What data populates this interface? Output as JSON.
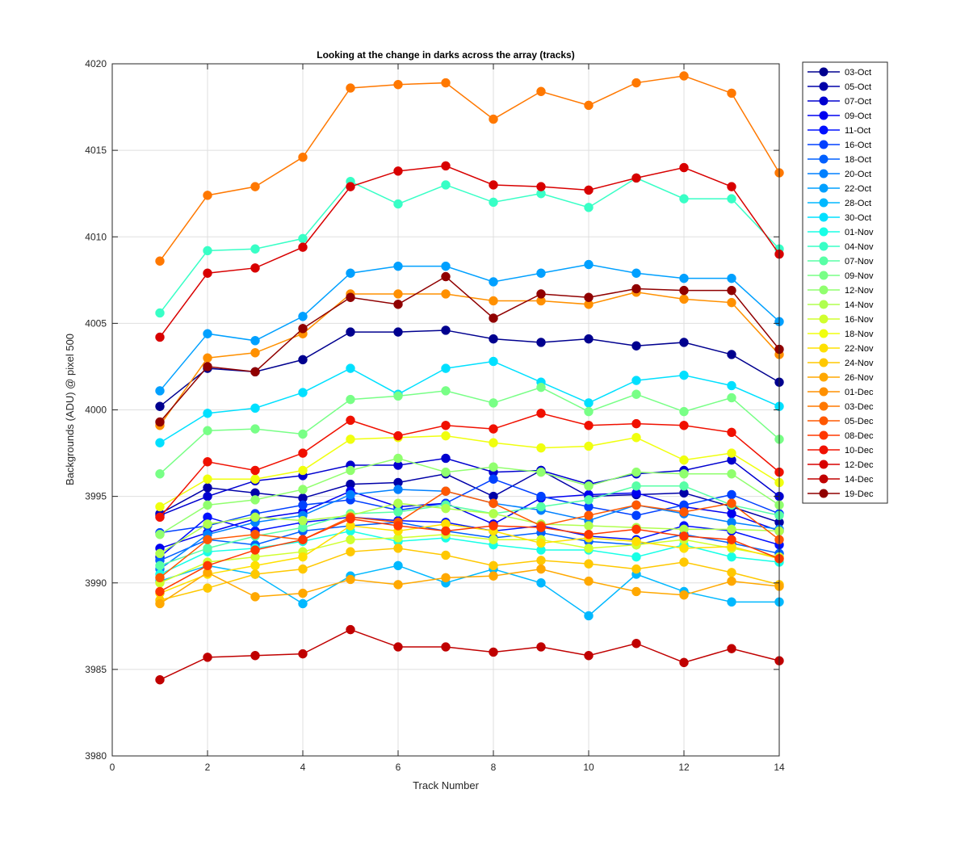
{
  "chart_data": {
    "type": "line",
    "title": "Looking at the change in darks across the array (tracks)",
    "xlabel": "Track Number",
    "ylabel": "Backgrounds (ADU) @ pixel 500",
    "xlim": [
      0,
      14
    ],
    "ylim": [
      3980,
      4020
    ],
    "xticks": [
      0,
      2,
      4,
      6,
      8,
      10,
      12,
      14
    ],
    "yticks": [
      3980,
      3985,
      3990,
      3995,
      4000,
      4005,
      4010,
      4015,
      4020
    ],
    "grid": true,
    "legend_position": "outside-top-right",
    "x": [
      1,
      2,
      3,
      4,
      5,
      6,
      7,
      8,
      9,
      10,
      11,
      12,
      13,
      14
    ],
    "series": [
      {
        "name": "03-Oct",
        "color": "#00008f",
        "values": [
          4000.2,
          4002.4,
          4002.2,
          4002.9,
          4004.5,
          4004.5,
          4004.6,
          4004.1,
          4003.9,
          4004.1,
          4003.7,
          4003.9,
          4003.2,
          4001.6
        ]
      },
      {
        "name": "05-Oct",
        "color": "#0000a8",
        "values": [
          3994.0,
          3995.5,
          3995.2,
          3994.9,
          3995.7,
          3995.8,
          3996.3,
          3995.0,
          3996.5,
          3995.0,
          3995.1,
          3995.2,
          3994.4,
          3993.5
        ]
      },
      {
        "name": "07-Oct",
        "color": "#0000cf",
        "values": [
          3993.9,
          3995.0,
          3995.9,
          3996.2,
          3996.8,
          3996.8,
          3997.2,
          3996.4,
          3996.5,
          3995.7,
          3996.3,
          3996.5,
          3997.1,
          3995.0
        ]
      },
      {
        "name": "09-Oct",
        "color": "#0000f0",
        "values": [
          3992.0,
          3992.9,
          3993.7,
          3994.1,
          3995.3,
          3994.4,
          3994.6,
          3993.4,
          3994.9,
          3995.1,
          3995.2,
          3994.4,
          3994.0,
          3993.0
        ]
      },
      {
        "name": "11-Oct",
        "color": "#0010ff",
        "values": [
          3991.5,
          3993.8,
          3993.0,
          3993.5,
          3993.8,
          3993.6,
          3993.5,
          3993.0,
          3993.3,
          3992.7,
          3992.5,
          3993.3,
          3993.0,
          3992.2
        ]
      },
      {
        "name": "16-Oct",
        "color": "#0040ff",
        "values": [
          3992.9,
          3993.3,
          3994.0,
          3994.5,
          3994.8,
          3994.2,
          3994.6,
          3996.0,
          3995.0,
          3994.4,
          3993.9,
          3994.5,
          3995.1,
          3994.0
        ]
      },
      {
        "name": "18-Oct",
        "color": "#0060ff",
        "values": [
          3991.3,
          3992.5,
          3992.2,
          3993.0,
          3993.3,
          3993.5,
          3993.0,
          3992.6,
          3992.9,
          3992.4,
          3992.2,
          3992.8,
          3992.3,
          3991.7
        ]
      },
      {
        "name": "20-Oct",
        "color": "#0080ff",
        "values": [
          3990.8,
          3992.8,
          3993.5,
          3993.9,
          3995.1,
          3995.4,
          3995.3,
          3994.6,
          3994.2,
          3993.6,
          3994.5,
          3994.0,
          3993.5,
          3993.1
        ]
      },
      {
        "name": "22-Oct",
        "color": "#00a0ff",
        "values": [
          4001.1,
          4004.4,
          4004.0,
          4005.4,
          4007.9,
          4008.3,
          4008.3,
          4007.4,
          4007.9,
          4008.4,
          4007.9,
          4007.6,
          4007.6,
          4005.1
        ]
      },
      {
        "name": "28-Oct",
        "color": "#00b8ff",
        "values": [
          3990.1,
          3991.0,
          3990.5,
          3988.8,
          3990.4,
          3991.0,
          3990.0,
          3990.8,
          3990.0,
          3988.1,
          3990.5,
          3989.5,
          3988.9,
          3988.9
        ]
      },
      {
        "name": "30-Oct",
        "color": "#00e0ff",
        "values": [
          3998.1,
          3999.8,
          4000.1,
          4001.0,
          4002.4,
          4000.9,
          4002.4,
          4002.8,
          4001.6,
          4000.4,
          4001.7,
          4002.0,
          4001.4,
          4000.2
        ]
      },
      {
        "name": "01-Nov",
        "color": "#18ffe6",
        "values": [
          3990.5,
          3991.8,
          3992.0,
          3992.4,
          3993.0,
          3992.4,
          3992.6,
          3992.2,
          3991.9,
          3991.9,
          3991.5,
          3992.2,
          3991.5,
          3991.2
        ]
      },
      {
        "name": "04-Nov",
        "color": "#38ffc6",
        "values": [
          4005.6,
          4009.2,
          4009.3,
          4009.9,
          4013.2,
          4011.9,
          4013.0,
          4012.0,
          4012.5,
          4011.7,
          4013.4,
          4012.2,
          4012.2,
          4009.3
        ]
      },
      {
        "name": "07-Nov",
        "color": "#58ffa6",
        "values": [
          3991.0,
          3992.0,
          3992.7,
          3993.2,
          3994.0,
          3994.1,
          3994.5,
          3994.0,
          3994.4,
          3994.8,
          3995.6,
          3995.6,
          3994.5,
          3993.9
        ]
      },
      {
        "name": "09-Nov",
        "color": "#78ff86",
        "values": [
          3996.3,
          3998.8,
          3998.9,
          3998.6,
          4000.6,
          4000.8,
          4001.1,
          4000.4,
          4001.3,
          3999.9,
          4000.9,
          3999.9,
          4000.7,
          3998.3
        ]
      },
      {
        "name": "12-Nov",
        "color": "#90ff6e",
        "values": [
          3992.8,
          3994.5,
          3994.8,
          3995.4,
          3996.5,
          3997.2,
          3996.4,
          3996.7,
          3996.4,
          3995.6,
          3996.4,
          3996.3,
          3996.3,
          3994.5
        ]
      },
      {
        "name": "14-Nov",
        "color": "#b0ff4e",
        "values": [
          3991.7,
          3993.4,
          3993.8,
          3993.6,
          3993.9,
          3994.6,
          3994.3,
          3994.0,
          3993.4,
          3993.3,
          3993.2,
          3993.1,
          3993.1,
          3993.0
        ]
      },
      {
        "name": "16-Nov",
        "color": "#d0ff2e",
        "values": [
          3990.0,
          3991.2,
          3991.5,
          3991.8,
          3992.5,
          3992.6,
          3992.8,
          3992.5,
          3992.5,
          3992.0,
          3992.2,
          3992.5,
          3992.0,
          3991.5
        ]
      },
      {
        "name": "18-Nov",
        "color": "#f0ff0e",
        "values": [
          3994.4,
          3996.0,
          3996.0,
          3996.5,
          3998.3,
          3998.4,
          3998.5,
          3998.1,
          3997.8,
          3997.9,
          3998.4,
          3997.1,
          3997.5,
          3995.8
        ]
      },
      {
        "name": "22-Nov",
        "color": "#ffe000",
        "values": [
          3989.4,
          3990.5,
          3991.0,
          3991.5,
          3993.3,
          3993.0,
          3993.4,
          3993.0,
          3992.3,
          3992.6,
          3992.4,
          3992.0,
          3992.1,
          3991.4
        ]
      },
      {
        "name": "24-Nov",
        "color": "#ffc800",
        "values": [
          3989.0,
          3989.7,
          3990.5,
          3990.8,
          3991.8,
          3992.0,
          3991.6,
          3991.0,
          3991.3,
          3991.1,
          3990.8,
          3991.2,
          3990.6,
          3989.9
        ]
      },
      {
        "name": "26-Nov",
        "color": "#ffa800",
        "values": [
          3988.8,
          3990.6,
          3989.2,
          3989.4,
          3990.2,
          3989.9,
          3990.3,
          3990.4,
          3990.8,
          3990.1,
          3989.5,
          3989.3,
          3990.1,
          3989.8
        ]
      },
      {
        "name": "01-Dec",
        "color": "#ff9000",
        "values": [
          3999.1,
          4003.0,
          4003.3,
          4004.4,
          4006.7,
          4006.7,
          4006.7,
          4006.3,
          4006.3,
          4006.1,
          4006.8,
          4006.4,
          4006.2,
          4003.2
        ]
      },
      {
        "name": "03-Dec",
        "color": "#ff7800",
        "values": [
          4008.6,
          4012.4,
          4012.9,
          4014.6,
          4018.6,
          4018.8,
          4018.9,
          4016.8,
          4018.4,
          4017.6,
          4018.9,
          4019.3,
          4018.3,
          4013.7
        ]
      },
      {
        "name": "05-Dec",
        "color": "#ff5800",
        "values": [
          3990.3,
          3992.5,
          3992.8,
          3992.5,
          3993.8,
          3993.5,
          3995.3,
          3994.6,
          3993.3,
          3993.9,
          3994.5,
          3994.1,
          3994.6,
          3992.5
        ]
      },
      {
        "name": "08-Dec",
        "color": "#ff3800",
        "values": [
          3989.5,
          3991.0,
          3991.9,
          3992.5,
          3993.7,
          3993.3,
          3993.0,
          3993.3,
          3993.2,
          3992.8,
          3993.1,
          3992.7,
          3992.5,
          3991.4
        ]
      },
      {
        "name": "10-Dec",
        "color": "#f01000",
        "values": [
          3993.8,
          3997.0,
          3996.5,
          3997.5,
          3999.4,
          3998.5,
          3999.1,
          3998.9,
          3999.8,
          3999.1,
          3999.2,
          3999.1,
          3998.7,
          3996.4
        ]
      },
      {
        "name": "12-Dec",
        "color": "#d80000",
        "values": [
          4004.2,
          4007.9,
          4008.2,
          4009.4,
          4012.9,
          4013.8,
          4014.1,
          4013.0,
          4012.9,
          4012.7,
          4013.4,
          4014.0,
          4012.9,
          4009.0
        ]
      },
      {
        "name": "14-Dec",
        "color": "#c00000",
        "values": [
          3984.4,
          3985.7,
          3985.8,
          3985.9,
          3987.3,
          3986.3,
          3986.3,
          3986.0,
          3986.3,
          3985.8,
          3986.5,
          3985.4,
          3986.2,
          3985.5
        ]
      },
      {
        "name": "19-Dec",
        "color": "#900000",
        "values": [
          3999.3,
          4002.5,
          4002.2,
          4004.7,
          4006.5,
          4006.1,
          4007.7,
          4005.3,
          4006.7,
          4006.5,
          4007.0,
          4006.9,
          4006.9,
          4003.5
        ]
      }
    ]
  }
}
